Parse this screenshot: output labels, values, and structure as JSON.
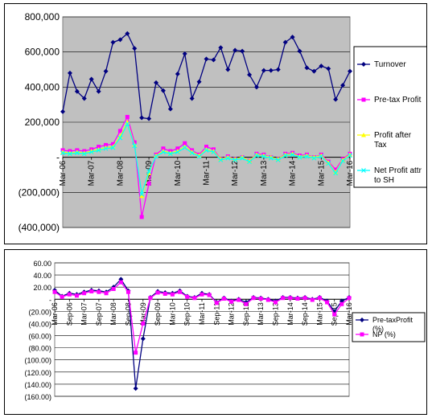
{
  "chart_data": [
    {
      "type": "line",
      "title": "",
      "xlabel": "",
      "ylabel": "",
      "ylim": [
        -400000,
        800000
      ],
      "yticks": [
        800000,
        600000,
        400000,
        200000,
        0,
        -200000,
        -400000
      ],
      "ytick_labels": [
        "800,000",
        "600,000",
        "400,000",
        "200,000",
        "-",
        "(200,000)",
        "(400,000)"
      ],
      "xtick_labels": [
        "Mar-06",
        "Mar-07",
        "Mar-08",
        "Mar-09",
        "Mar-10",
        "Mar-11",
        "Mar-12",
        "Mar-13",
        "Mar-14",
        "Mar-15",
        "Mar-16"
      ],
      "legend_position": "right",
      "grid": true,
      "background": "#c0c0c0",
      "series": [
        {
          "name": "Turnover",
          "color": "#000080",
          "marker": "diamond",
          "values": [
            260000,
            480000,
            375000,
            335000,
            445000,
            375000,
            490000,
            655000,
            670000,
            705000,
            620000,
            225000,
            220000,
            425000,
            380000,
            275000,
            475000,
            590000,
            335000,
            430000,
            560000,
            555000,
            625000,
            500000,
            610000,
            605000,
            470000,
            400000,
            495000,
            495000,
            500000,
            655000,
            685000,
            605000,
            510000,
            490000,
            520000,
            505000,
            330000,
            410000,
            490000
          ]
        },
        {
          "name": "Pre-tax Profit",
          "color": "#ff00ff",
          "marker": "square",
          "values": [
            40000,
            35000,
            40000,
            35000,
            45000,
            60000,
            70000,
            75000,
            150000,
            230000,
            85000,
            -340000,
            -150000,
            15000,
            50000,
            35000,
            50000,
            80000,
            40000,
            15000,
            60000,
            45000,
            -10000,
            5000,
            -10000,
            0,
            -20000,
            20000,
            15000,
            0,
            -10000,
            20000,
            25000,
            10000,
            15000,
            0,
            15000,
            -25000,
            -70000,
            -10000,
            20000
          ]
        },
        {
          "name": "Profit after Tax",
          "color": "#ffff00",
          "marker": "triangle",
          "values": [
            30000,
            25000,
            30000,
            25000,
            35000,
            45000,
            55000,
            60000,
            120000,
            200000,
            70000,
            -220000,
            -90000,
            10000,
            35000,
            25000,
            35000,
            60000,
            30000,
            10000,
            45000,
            35000,
            -10000,
            0,
            -10000,
            0,
            -20000,
            15000,
            10000,
            0,
            -10000,
            15000,
            20000,
            5000,
            10000,
            0,
            10000,
            -30000,
            -85000,
            -15000,
            15000
          ]
        },
        {
          "name": "Net Profit attr to SH",
          "color": "#00ffff",
          "marker": "x",
          "values": [
            25000,
            20000,
            25000,
            20000,
            30000,
            40000,
            50000,
            55000,
            110000,
            190000,
            65000,
            -210000,
            -80000,
            5000,
            30000,
            20000,
            30000,
            55000,
            25000,
            5000,
            40000,
            30000,
            -15000,
            -5000,
            -15000,
            -5000,
            -25000,
            10000,
            5000,
            -5000,
            -15000,
            10000,
            15000,
            0,
            5000,
            -5000,
            5000,
            -35000,
            -90000,
            -20000,
            10000
          ]
        }
      ]
    },
    {
      "type": "line",
      "title": "",
      "xlabel": "",
      "ylabel": "",
      "ylim": [
        -160,
        60
      ],
      "yticks": [
        60,
        40,
        20,
        0,
        -20,
        -40,
        -60,
        -80,
        -100,
        -120,
        -140,
        -160
      ],
      "ytick_labels": [
        "60.00",
        "40.00",
        "20.00",
        "-",
        "(20.00)",
        "(40.00)",
        "(60.00)",
        "(80.00)",
        "(100.00)",
        "(120.00)",
        "(140.00)",
        "(160.00)"
      ],
      "xtick_labels": [
        "Mar-06",
        "Sep-06",
        "Mar-07",
        "Sep-07",
        "Mar-08",
        "Sep-08",
        "Mar-09",
        "Sep-09",
        "Mar-10",
        "Sep-10",
        "Mar-11",
        "Sep-11",
        "Mar-12",
        "Sep-12",
        "Mar-13",
        "Sep-13",
        "Mar-14",
        "Sep-14",
        "Mar-15",
        "Sep-15",
        "Mar-16"
      ],
      "legend_position": "right",
      "grid": true,
      "background": "#ffffff",
      "series": [
        {
          "name": "Pre-taxProfit (%)",
          "color": "#000080",
          "marker": "diamond",
          "values": [
            15,
            5,
            10,
            8,
            12,
            15,
            14,
            12,
            20,
            33,
            14,
            -147,
            -65,
            3,
            13,
            11,
            10,
            14,
            5,
            3,
            10,
            8,
            -5,
            2,
            -3,
            0,
            -5,
            3,
            2,
            0,
            -3,
            3,
            3,
            2,
            3,
            0,
            3,
            -3,
            -20,
            -3,
            3
          ]
        },
        {
          "name": "NP (%)",
          "color": "#ff00ff",
          "marker": "square",
          "values": [
            12,
            4,
            8,
            6,
            10,
            13,
            12,
            10,
            17,
            28,
            12,
            -88,
            -40,
            2,
            11,
            9,
            8,
            12,
            4,
            2,
            8,
            7,
            -6,
            1,
            -4,
            -1,
            -8,
            2,
            1,
            -1,
            -5,
            2,
            2,
            1,
            2,
            -1,
            2,
            -5,
            -25,
            -8,
            2
          ]
        }
      ]
    }
  ]
}
